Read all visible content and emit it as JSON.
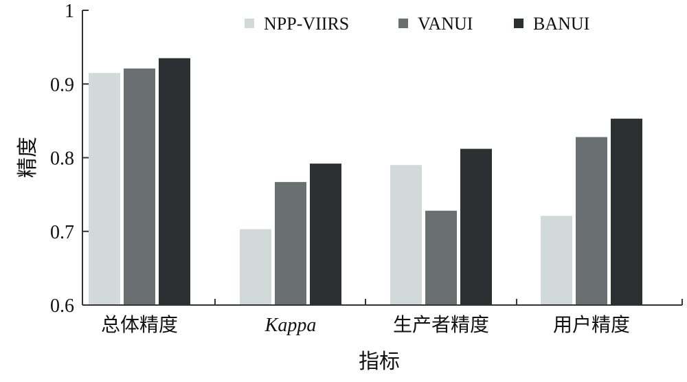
{
  "colors": {
    "series_1": "#d2dad9",
    "series_2": "#6a7071",
    "series_3": "#2d3032"
  },
  "chart_data": {
    "type": "bar",
    "title": "",
    "xlabel": "指标",
    "ylabel": "精度",
    "categories": [
      "总体精度",
      "Kappa",
      "生产者精度",
      "用户精度"
    ],
    "series": [
      {
        "name": "NPP-VIIRS",
        "values": [
          0.915,
          0.703,
          0.79,
          0.721
        ]
      },
      {
        "name": "VANUI",
        "values": [
          0.921,
          0.767,
          0.728,
          0.828
        ]
      },
      {
        "name": "BANUI",
        "values": [
          0.935,
          0.792,
          0.812,
          0.853
        ]
      }
    ],
    "ylim": [
      0.6,
      1.0
    ],
    "yticks": [
      "0.6",
      "0.7",
      "0.8",
      "0.9",
      "1"
    ],
    "italic_categories": [
      "Kappa"
    ],
    "grid": false,
    "legend_position": "top"
  }
}
